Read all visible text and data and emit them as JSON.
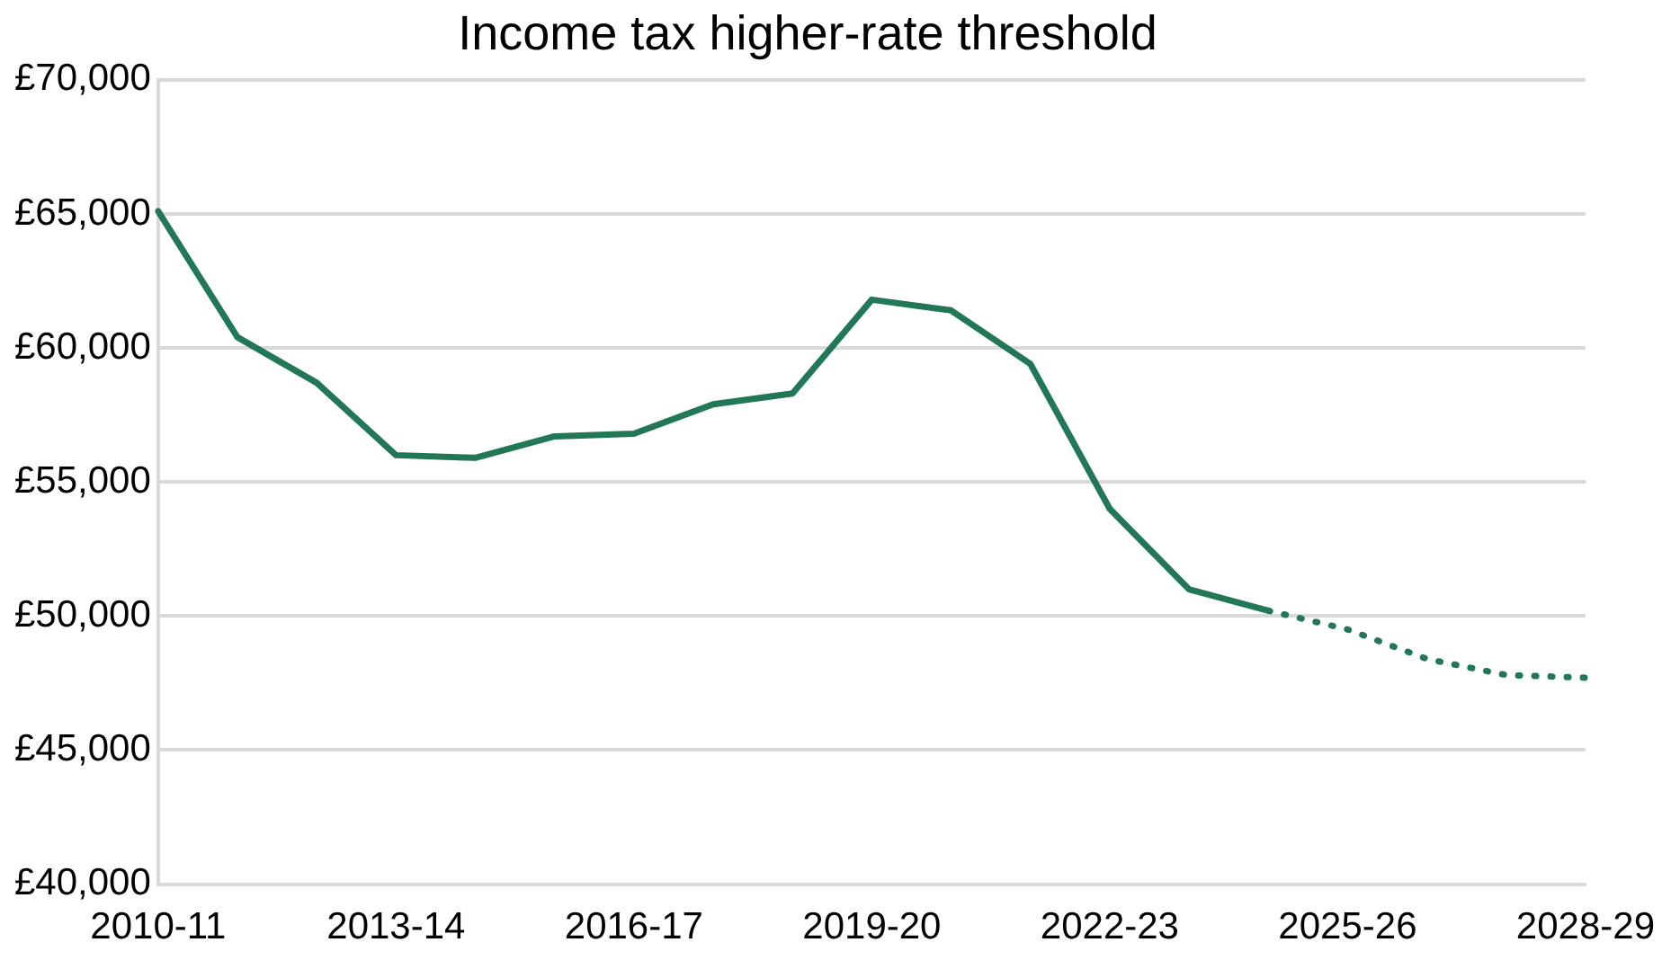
{
  "chart_data": {
    "type": "line",
    "title": "Income tax higher-rate threshold",
    "categories": [
      "2010-11",
      null,
      null,
      "2013-14",
      null,
      null,
      "2016-17",
      null,
      null,
      "2019-20",
      null,
      null,
      "2022-23",
      null,
      null,
      "2025-26",
      null,
      null,
      "2028-29"
    ],
    "series": [
      {
        "color": "#217756",
        "line_style": "solid",
        "values": [
          65100,
          60400,
          58700,
          56000,
          55900,
          56700,
          56800,
          57900,
          58300,
          61800,
          61400,
          59400,
          54000,
          51000,
          50200,
          null,
          null,
          null,
          null
        ]
      },
      {
        "color": "#217756",
        "line_style": "dotted",
        "values": [
          null,
          null,
          null,
          null,
          null,
          null,
          null,
          null,
          null,
          null,
          null,
          null,
          null,
          null,
          50200,
          49500,
          48400,
          47800,
          47700
        ]
      }
    ],
    "ylim": [
      40000,
      70000
    ],
    "yticks": [
      {
        "value": 40000,
        "label": "£40,000"
      },
      {
        "value": 45000,
        "label": "£45,000"
      },
      {
        "value": 50000,
        "label": "£50,000"
      },
      {
        "value": 55000,
        "label": "£55,000"
      },
      {
        "value": 60000,
        "label": "£60,000"
      },
      {
        "value": 65000,
        "label": "£65,000"
      },
      {
        "value": 70000,
        "label": "£70,000"
      }
    ],
    "grid": "y",
    "marker": "none",
    "legend": false
  }
}
